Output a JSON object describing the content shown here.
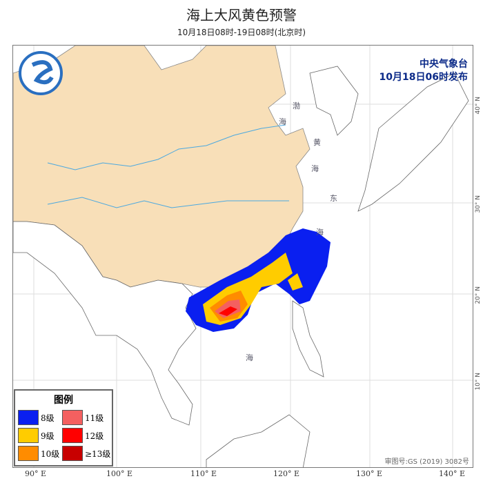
{
  "title": "海上大风黄色预警",
  "subtitle": "10月18日08时-19日08时(北京时)",
  "issuer": {
    "name": "中央气象台",
    "time": "10月18日06时发布"
  },
  "legend": {
    "title": "图例",
    "items": [
      {
        "label": "8级",
        "color": "#0a1ff0"
      },
      {
        "label": "11级",
        "color": "#f46060"
      },
      {
        "label": "9级",
        "color": "#ffcc00"
      },
      {
        "label": "12级",
        "color": "#ff0000"
      },
      {
        "label": "10级",
        "color": "#ff8c00"
      },
      {
        "label": "≥13级",
        "color": "#c80000"
      }
    ]
  },
  "lon_labels": [
    "90° E",
    "100° E",
    "110° E",
    "120° E",
    "130° E",
    "140° E"
  ],
  "lat_labels": [
    "40° N",
    "30° N",
    "20° N",
    "10° N"
  ],
  "sea_labels": [
    "渤",
    "海",
    "黄",
    "海",
    "东",
    "海",
    "海"
  ],
  "approval": "审图号:GS (2019) 3082号",
  "colors": {
    "land": "#f8dfb8",
    "river": "#4aa8e0"
  }
}
